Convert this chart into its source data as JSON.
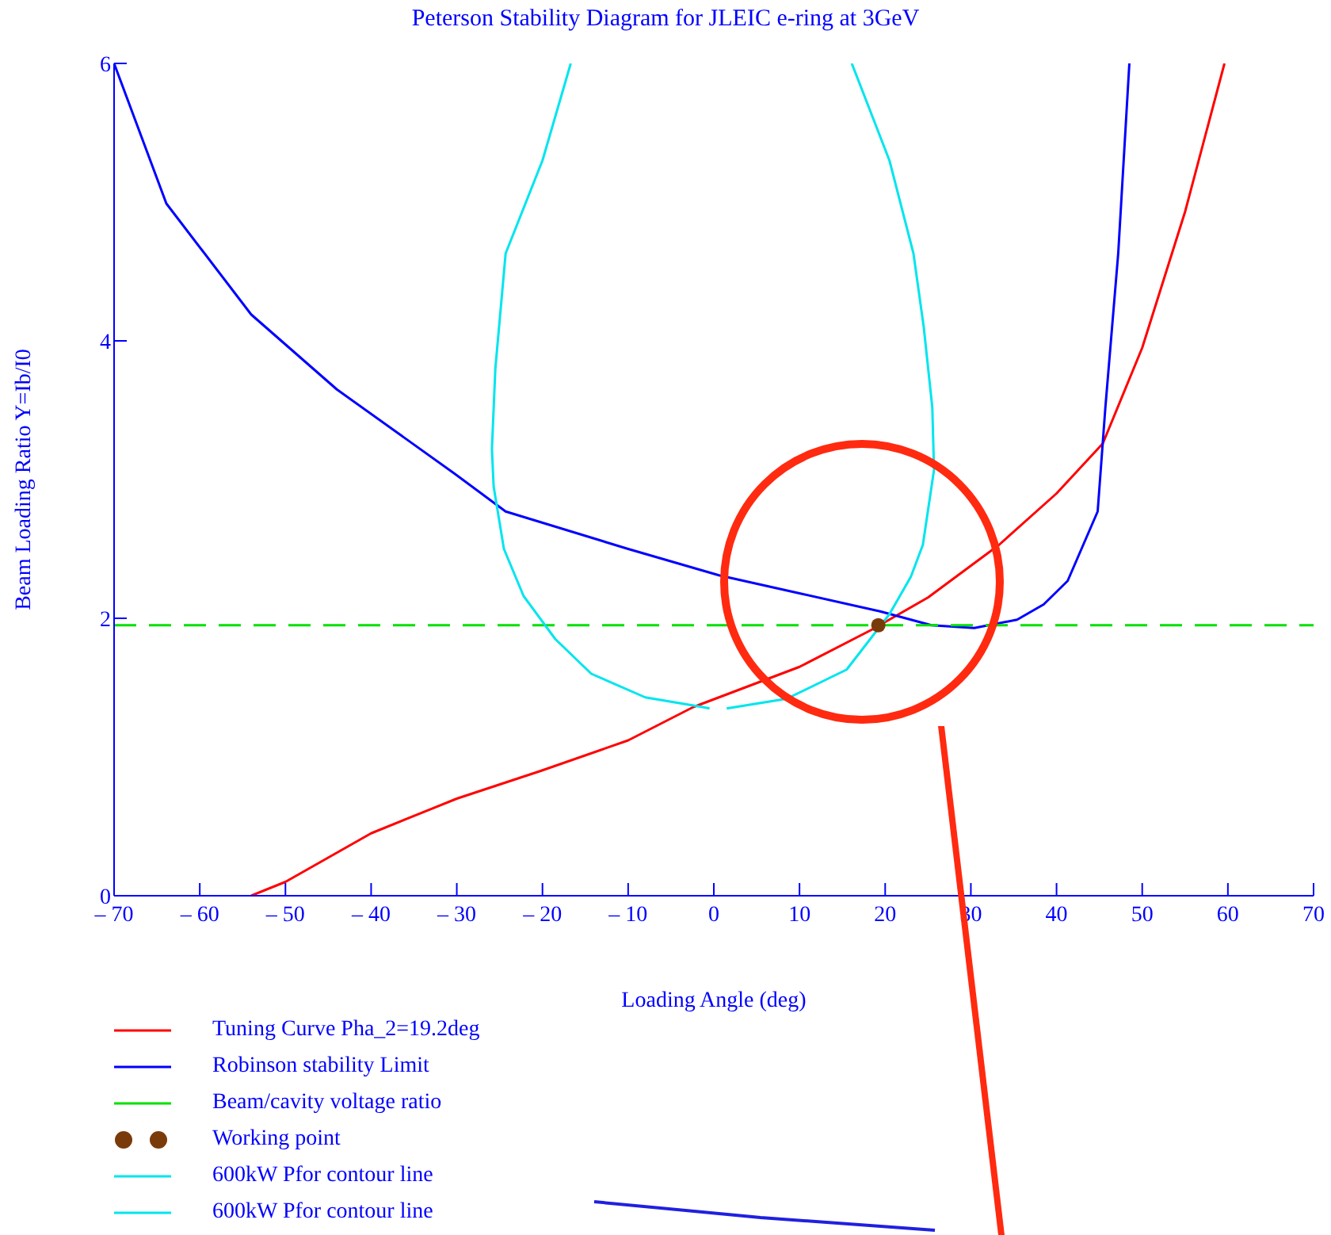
{
  "chart_data": {
    "type": "line",
    "title": "Peterson Stability Diagram for JLEIC e-ring at 3GeV",
    "xlabel": "Loading Angle (deg)",
    "ylabel": "Beam Loading Ratio Y=Ib/I0",
    "xlim": [
      -70,
      70
    ],
    "xticks": [
      {
        "value": -70,
        "label": "– 70"
      },
      {
        "value": -60,
        "label": "– 60"
      },
      {
        "value": -50,
        "label": "– 50"
      },
      {
        "value": -40,
        "label": "– 40"
      },
      {
        "value": -30,
        "label": "– 30"
      },
      {
        "value": -20,
        "label": "– 20"
      },
      {
        "value": -10,
        "label": "– 10"
      },
      0,
      10,
      20,
      30,
      40,
      50,
      60,
      70
    ],
    "ylim": [
      0,
      6
    ],
    "yticks": [
      0,
      2,
      4,
      6
    ],
    "grid": false,
    "legend": "bottom left",
    "marker": "none",
    "series": [
      {
        "name": "Tuning Curve Pha_2=19.2deg",
        "color": "#ff0000",
        "x": [
          -54,
          -50,
          -40,
          -30,
          -20.2,
          -10,
          -2.4,
          10,
          18.5,
          25,
          33.3,
          40,
          45.4,
          50,
          55,
          59.6
        ],
        "values": [
          0,
          0.1,
          0.45,
          0.7,
          0.9,
          1.12,
          1.36,
          1.65,
          1.92,
          2.15,
          2.53,
          2.9,
          3.26,
          3.95,
          4.93,
          6
        ]
      },
      {
        "name": "Robinson stability Limit",
        "color": "#0000ff",
        "x": [
          -70,
          -63.9,
          -54,
          -44,
          -30.2,
          -24.3,
          -10,
          0.6,
          10,
          19.4,
          25.4,
          30.4,
          35.4,
          38.5,
          41.3,
          44.8,
          45.7,
          47.2,
          48.5
        ],
        "values": [
          6,
          4.99,
          4.19,
          3.65,
          3.04,
          2.77,
          2.5,
          2.31,
          2.18,
          2.05,
          1.95,
          1.93,
          1.99,
          2.1,
          2.27,
          2.77,
          3.52,
          4.63,
          6
        ]
      },
      {
        "name": "Beam/cavity voltage ratio",
        "color": "#00e000",
        "line_style": "dashed",
        "x": [
          -70,
          70
        ],
        "values": [
          1.95,
          1.95
        ]
      },
      {
        "name": "Working point",
        "type": "scatter",
        "marker": "circle",
        "color": "#7a3b0a",
        "x": [
          19.2
        ],
        "values": [
          1.95
        ]
      },
      {
        "name": "600kW Pfor contour line",
        "color": "#00e5ee",
        "x": [
          -16.7,
          -20,
          -24.3,
          -25.5,
          -25.9,
          -25.7,
          -24.5,
          -22.2,
          -18.5,
          -14.3,
          -8,
          -1.3,
          -0.5
        ],
        "values": [
          6,
          5.3,
          4.63,
          3.8,
          3.22,
          2.95,
          2.5,
          2.16,
          1.85,
          1.6,
          1.43,
          1.36,
          1.35
        ]
      },
      {
        "name": "600kW Pfor contour line",
        "color": "#00e5ee",
        "x": [
          1.5,
          8.5,
          15.5,
          20.5,
          23,
          24.4,
          25.7,
          25.5,
          24.5,
          23.3,
          20.5,
          16.1
        ],
        "values": [
          1.35,
          1.42,
          1.63,
          2.03,
          2.3,
          2.53,
          3.07,
          3.52,
          4.1,
          4.63,
          5.3,
          6
        ]
      }
    ]
  }
}
